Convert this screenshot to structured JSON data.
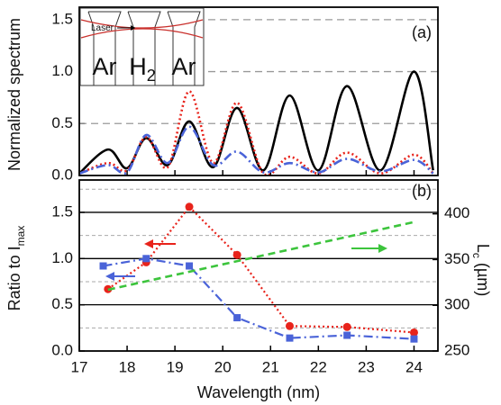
{
  "chart_data": [
    {
      "type": "line",
      "ylabel": "Normalized spectrum",
      "panel_label": "(a)",
      "inset_labels": {
        "laser": "Laser",
        "left": "Ar",
        "middle": "H",
        "middle_sub": "2",
        "right": "Ar"
      },
      "x": [
        17,
        17.6,
        18.0,
        18.4,
        18.85,
        19.3,
        19.8,
        20.3,
        20.85,
        21.4,
        22.0,
        22.6,
        23.3,
        24,
        24.4
      ],
      "xlim": [
        17,
        24.5
      ],
      "ylim": [
        0,
        1.62
      ],
      "yticks": [
        {
          "value": 0,
          "label": "0.0"
        },
        0.5,
        {
          "value": 1,
          "label": "1.0"
        },
        1.5
      ],
      "grid": "dashed",
      "smooth": true,
      "series": [
        {
          "color": "#000000",
          "dash": "none",
          "width": 2.6,
          "values": [
            0.02,
            0.25,
            0.07,
            0.36,
            0.1,
            0.52,
            0.08,
            0.65,
            0.05,
            0.77,
            0.05,
            0.86,
            0.05,
            1.0,
            0.05
          ]
        },
        {
          "color": "#e8231b",
          "dash": "2,3",
          "width": 2.6,
          "values": [
            0.02,
            0.12,
            0.05,
            0.37,
            0.08,
            0.81,
            0.12,
            0.7,
            0.02,
            0.18,
            0.02,
            0.22,
            0.02,
            0.2,
            0.02
          ]
        },
        {
          "color": "#4a63d8",
          "dash": "10,4,2,4",
          "width": 2.6,
          "values": [
            0.02,
            0.1,
            0.03,
            0.39,
            0.12,
            0.47,
            0.1,
            0.23,
            0.03,
            0.12,
            0.03,
            0.16,
            0.04,
            0.15,
            0.02
          ]
        }
      ]
    },
    {
      "type": "line",
      "xlabel": "Wavelength (nm)",
      "ylabel": "Ratio to I",
      "ylabel_sub": "max",
      "y2label": "L",
      "y2label_sub": "c",
      "y2label_unit": " (µm)",
      "panel_label": "(b)",
      "xlim": [
        17,
        24.5
      ],
      "xticks": [
        17,
        18,
        19,
        20,
        21,
        22,
        23,
        24
      ],
      "ylim": [
        0,
        1.85
      ],
      "yticks": [
        {
          "value": 0,
          "label": "0.0"
        },
        0.5,
        {
          "value": 1,
          "label": "1.0"
        },
        1.5
      ],
      "y2lim": [
        250,
        437
      ],
      "y2ticks": [
        250,
        300,
        350,
        400
      ],
      "grid": "solid",
      "minor_grid": [
        0.25,
        0.75,
        1.25,
        1.75
      ],
      "series": [
        {
          "color": "#e8231b",
          "dash": "2,3",
          "width": 2.2,
          "marker": "circle",
          "x": [
            17.6,
            18.4,
            19.3,
            20.3,
            21.4,
            22.6,
            24
          ],
          "values": [
            0.67,
            0.96,
            1.56,
            1.04,
            0.27,
            0.26,
            0.2
          ]
        },
        {
          "color": "#4a63d8",
          "dash": "10,4,2,4",
          "width": 2.2,
          "marker": "square",
          "x": [
            17.5,
            18.4,
            19.3,
            20.3,
            21.4,
            22.6,
            24
          ],
          "values": [
            0.92,
            1.0,
            0.92,
            0.36,
            0.14,
            0.17,
            0.13
          ]
        },
        {
          "color": "#3cc43c",
          "dash": "8,5",
          "width": 2.6,
          "axis": "y2",
          "x": [
            17.6,
            24
          ],
          "values": [
            317,
            391
          ]
        }
      ]
    }
  ]
}
